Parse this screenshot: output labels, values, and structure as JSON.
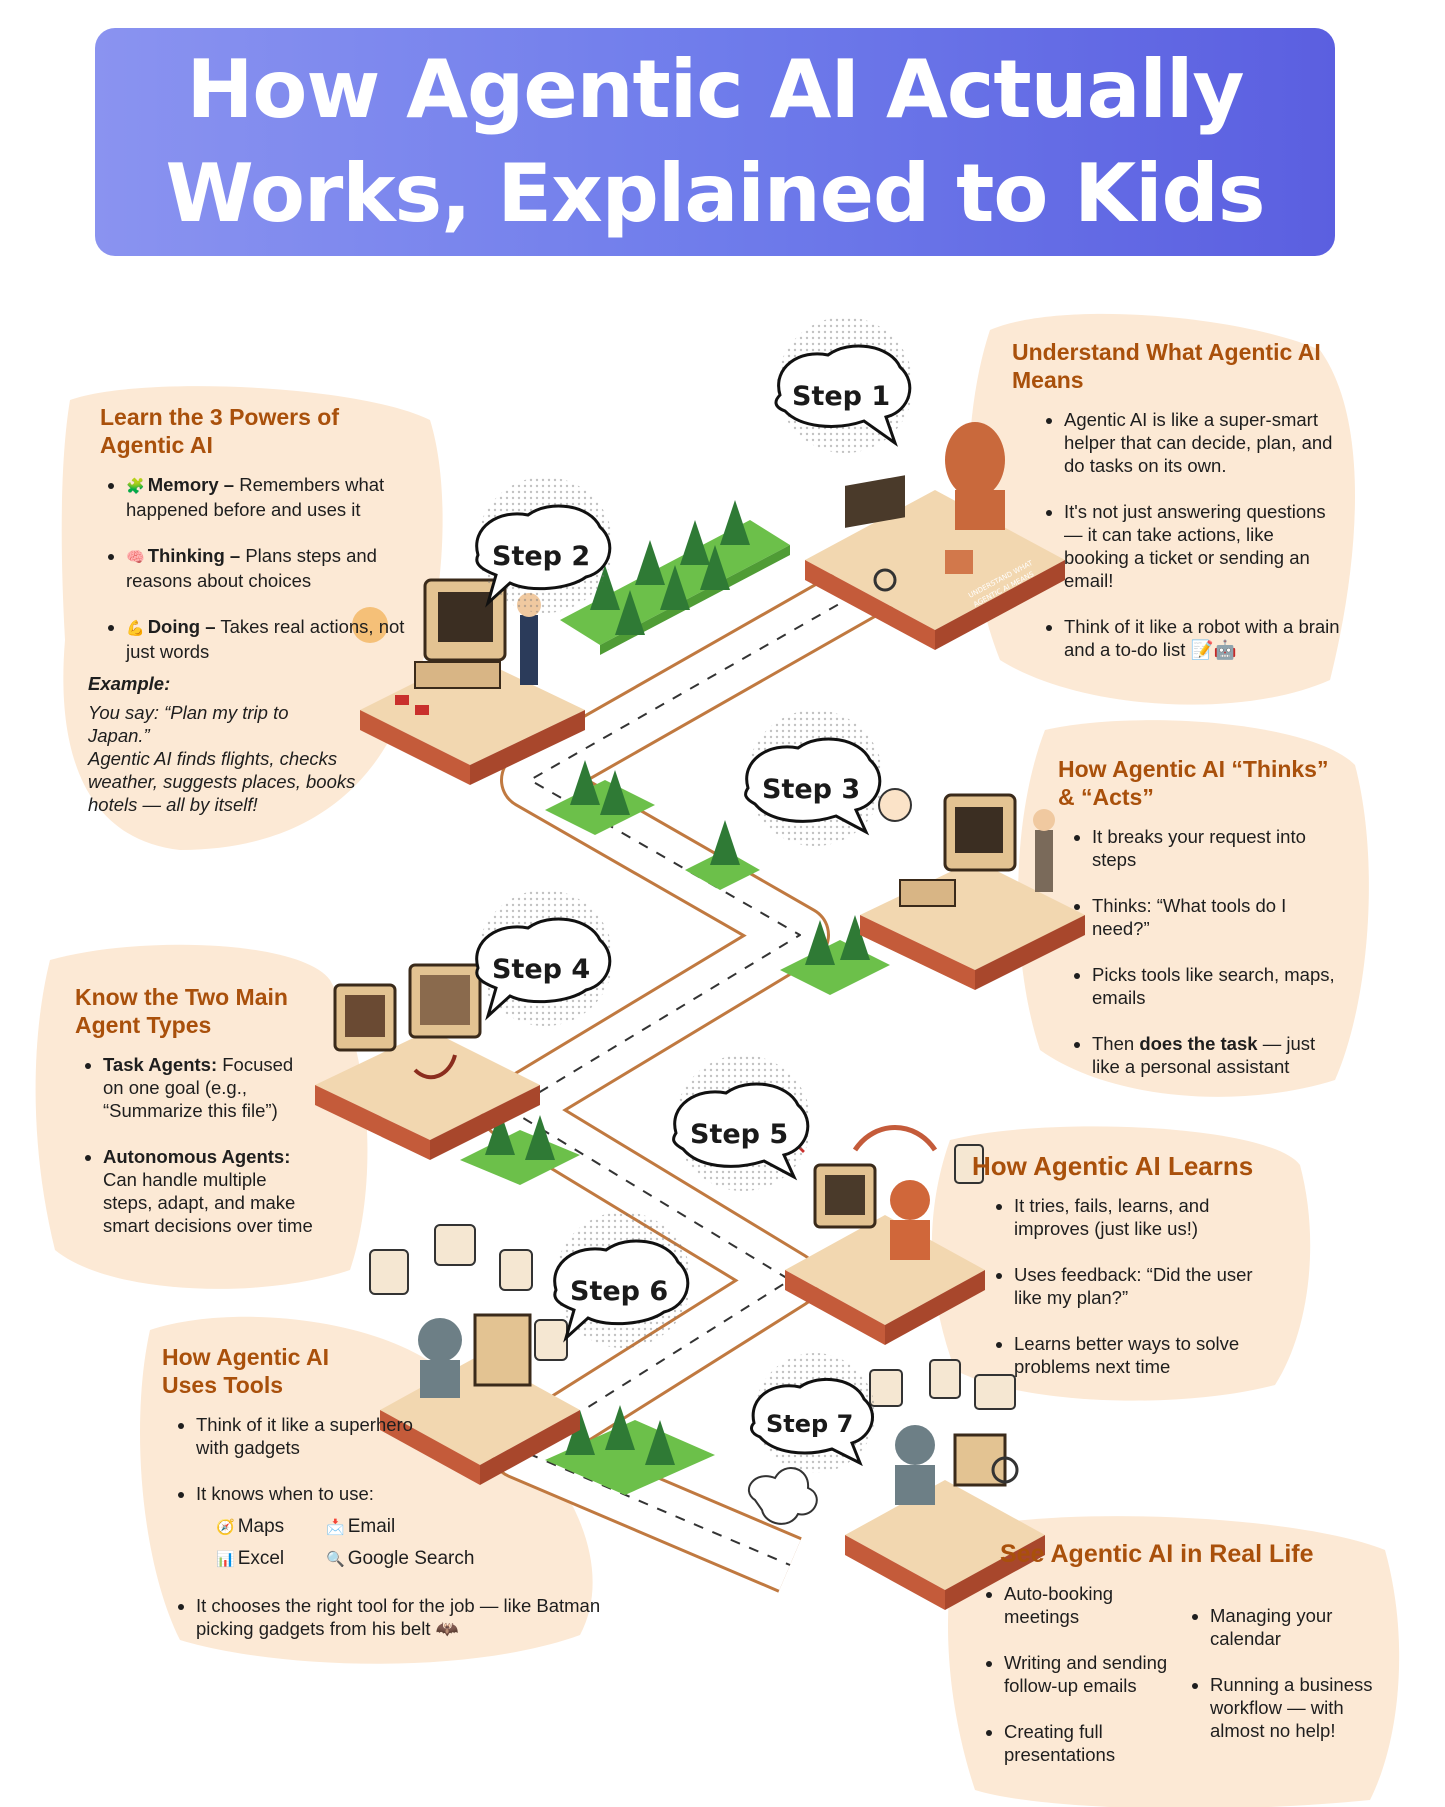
{
  "title": {
    "line1": "How Agentic AI Actually",
    "line2": "Works, Explained to Kids"
  },
  "steps": [
    {
      "label": "Step 1"
    },
    {
      "label": "Step 2"
    },
    {
      "label": "Step 3"
    },
    {
      "label": "Step 4"
    },
    {
      "label": "Step 5"
    },
    {
      "label": "Step 6"
    },
    {
      "label": "Step 7"
    }
  ],
  "step1_tile_text": {
    "line1": "UNDERSTAND WHAT",
    "line2": "AGENTIC AI MEANS"
  },
  "panels": {
    "step1": {
      "title": "Understand What Agentic AI Means",
      "bullets": [
        "Agentic AI is like a super-smart helper that can decide, plan, and do tasks on its own.",
        "It's not just answering questions — it can take actions, like booking a ticket or sending an email!",
        "Think of it like a robot with a brain and a to-do list 📝🤖"
      ]
    },
    "step2": {
      "title": "Learn the 3 Powers of Agentic AI",
      "powers": [
        {
          "icon": "🧩",
          "name": "Memory –",
          "text": " Remembers what happened before and uses it"
        },
        {
          "icon": "🧠",
          "name": "Thinking –",
          "text": " Plans steps and reasons about choices"
        },
        {
          "icon": "💪",
          "name": "Doing –",
          "text": " Takes real actions, not just words"
        }
      ],
      "example_title": "Example:",
      "example_lines": [
        "You say: “Plan my trip to Japan.”",
        "Agentic AI finds flights, checks weather, suggests places, books hotels — all by itself!"
      ]
    },
    "step3": {
      "title": "How Agentic AI “Thinks” & “Acts”",
      "bullets": [
        {
          "pre": "It breaks your request into steps"
        },
        {
          "pre": "Thinks: “What tools do I need?”"
        },
        {
          "pre": "Picks tools like search, maps, emails"
        },
        {
          "pre": "Then ",
          "bold": "does the task",
          "post": " — just like a personal assistant"
        }
      ]
    },
    "step4": {
      "title": "Know the Two Main Agent Types",
      "types": [
        {
          "name": "Task Agents:",
          "text": " Focused on one goal (e.g., “Summarize this file”)"
        },
        {
          "name": "Autonomous Agents:",
          "text": " Can handle multiple steps, adapt, and make smart decisions over time"
        }
      ]
    },
    "step5": {
      "title": "How Agentic AI Learns",
      "bullets": [
        "It tries, fails, learns, and improves (just like us!)",
        "Uses feedback: “Did the user like my plan?”",
        "Learns better ways to solve problems next time"
      ]
    },
    "step6": {
      "title": "How Agentic AI Uses Tools",
      "bullet1": "Think of it like a superhero with gadgets",
      "bullet2": "It knows when to use:",
      "tools": [
        {
          "icon": "🧭",
          "label": "Maps"
        },
        {
          "icon": "📩",
          "label": "Email"
        },
        {
          "icon": "📊",
          "label": "Excel"
        },
        {
          "icon": "🔍",
          "label": "Google Search"
        }
      ],
      "bullet3": "It chooses the right tool for the job — like Batman picking gadgets from his belt 🦇"
    },
    "step7": {
      "title": "See Agentic AI in Real Life",
      "col1": [
        "Auto-booking meetings",
        "Writing and sending follow-up emails",
        "Creating full presentations"
      ],
      "col2": [
        "Managing your calendar",
        "Running a business workflow — with almost no help!"
      ]
    }
  }
}
